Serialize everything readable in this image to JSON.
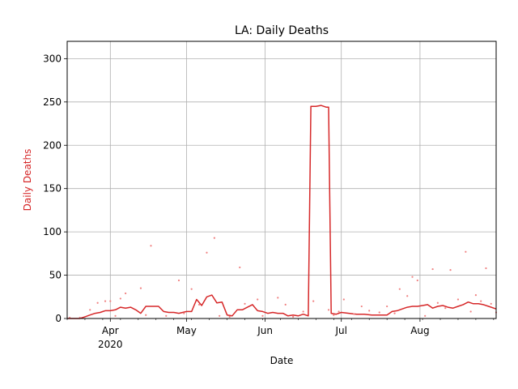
{
  "chart_data": {
    "type": "line",
    "title": "LA: Daily Deaths",
    "xlabel": "Date",
    "ylabel": "Daily Deaths",
    "x_range": [
      "2020-03-15",
      "2020-08-31"
    ],
    "ylim": [
      0,
      320
    ],
    "yticks": [
      0,
      50,
      100,
      150,
      200,
      250,
      300
    ],
    "xticks": [
      {
        "date": "2020-04-01",
        "label": "Apr",
        "sublabel": "2020"
      },
      {
        "date": "2020-05-01",
        "label": "May",
        "sublabel": ""
      },
      {
        "date": "2020-06-01",
        "label": "Jun",
        "sublabel": ""
      },
      {
        "date": "2020-07-01",
        "label": "Jul",
        "sublabel": ""
      },
      {
        "date": "2020-08-01",
        "label": "Aug",
        "sublabel": ""
      }
    ],
    "grid": true,
    "colors": {
      "line": "#d62728",
      "points": "#f08080",
      "ylabel": "#d62728",
      "grid": "#b0b0b0"
    },
    "series": [
      {
        "kind": "line",
        "x": [
          "2020-03-15",
          "2020-03-20",
          "2020-03-22",
          "2020-03-24",
          "2020-03-26",
          "2020-03-28",
          "2020-03-30",
          "2020-04-01",
          "2020-04-03",
          "2020-04-05",
          "2020-04-07",
          "2020-04-09",
          "2020-04-11",
          "2020-04-13",
          "2020-04-15",
          "2020-04-17",
          "2020-04-20",
          "2020-04-22",
          "2020-04-24",
          "2020-04-26",
          "2020-04-28",
          "2020-05-01",
          "2020-05-03",
          "2020-05-05",
          "2020-05-07",
          "2020-05-09",
          "2020-05-11",
          "2020-05-13",
          "2020-05-15",
          "2020-05-17",
          "2020-05-19",
          "2020-05-21",
          "2020-05-23",
          "2020-05-25",
          "2020-05-27",
          "2020-05-29",
          "2020-05-31",
          "2020-06-02",
          "2020-06-04",
          "2020-06-06",
          "2020-06-08",
          "2020-06-10",
          "2020-06-12",
          "2020-06-14",
          "2020-06-16",
          "2020-06-18",
          "2020-06-19",
          "2020-06-21",
          "2020-06-23",
          "2020-06-25",
          "2020-06-26",
          "2020-06-27",
          "2020-06-29",
          "2020-07-01",
          "2020-07-04",
          "2020-07-07",
          "2020-07-10",
          "2020-07-13",
          "2020-07-16",
          "2020-07-19",
          "2020-07-21",
          "2020-07-23",
          "2020-07-25",
          "2020-07-27",
          "2020-07-29",
          "2020-07-31",
          "2020-08-02",
          "2020-08-04",
          "2020-08-06",
          "2020-08-08",
          "2020-08-10",
          "2020-08-12",
          "2020-08-14",
          "2020-08-16",
          "2020-08-18",
          "2020-08-20",
          "2020-08-22",
          "2020-08-24",
          "2020-08-26",
          "2020-08-28",
          "2020-08-31"
        ],
        "y": [
          0,
          0,
          2,
          4,
          6,
          7,
          9,
          9,
          10,
          13,
          12,
          13,
          10,
          6,
          14,
          14,
          14,
          8,
          7,
          7,
          6,
          8,
          8,
          22,
          15,
          25,
          27,
          18,
          19,
          4,
          3,
          10,
          10,
          13,
          16,
          9,
          8,
          6,
          7,
          6,
          6,
          3,
          4,
          3,
          5,
          3,
          245,
          245,
          246,
          244,
          244,
          6,
          5,
          7,
          6,
          5,
          5,
          4,
          4,
          4,
          8,
          9,
          11,
          13,
          14,
          14,
          15,
          16,
          12,
          14,
          15,
          13,
          12,
          14,
          16,
          19,
          17,
          17,
          16,
          14,
          11
        ]
      },
      {
        "kind": "scatter",
        "x": [
          "2020-03-16",
          "2020-03-20",
          "2020-03-24",
          "2020-03-27",
          "2020-03-30",
          "2020-04-01",
          "2020-04-03",
          "2020-04-05",
          "2020-04-07",
          "2020-04-13",
          "2020-04-15",
          "2020-04-17",
          "2020-04-23",
          "2020-04-28",
          "2020-04-30",
          "2020-05-03",
          "2020-05-06",
          "2020-05-09",
          "2020-05-12",
          "2020-05-14",
          "2020-05-18",
          "2020-05-22",
          "2020-05-24",
          "2020-05-29",
          "2020-05-31",
          "2020-06-06",
          "2020-06-09",
          "2020-06-12",
          "2020-06-16",
          "2020-06-20",
          "2020-06-26",
          "2020-06-28",
          "2020-06-30",
          "2020-07-02",
          "2020-07-06",
          "2020-07-09",
          "2020-07-12",
          "2020-07-16",
          "2020-07-19",
          "2020-07-22",
          "2020-07-24",
          "2020-07-27",
          "2020-07-29",
          "2020-07-31",
          "2020-08-03",
          "2020-08-06",
          "2020-08-08",
          "2020-08-11",
          "2020-08-13",
          "2020-08-16",
          "2020-08-19",
          "2020-08-21",
          "2020-08-23",
          "2020-08-25",
          "2020-08-27",
          "2020-08-29",
          "2020-08-31"
        ],
        "y": [
          1,
          1,
          10,
          18,
          20,
          20,
          3,
          23,
          29,
          35,
          4,
          84,
          3,
          44,
          6,
          34,
          16,
          76,
          93,
          3,
          2,
          59,
          17,
          22,
          3,
          24,
          16,
          2,
          8,
          20,
          10,
          4,
          8,
          22,
          5,
          14,
          9,
          7,
          14,
          6,
          34,
          26,
          48,
          44,
          3,
          57,
          18,
          12,
          56,
          22,
          77,
          8,
          27,
          20,
          58,
          17,
          7
        ]
      }
    ]
  }
}
